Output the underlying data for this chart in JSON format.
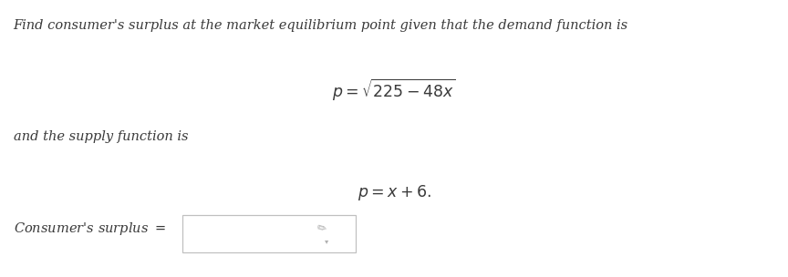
{
  "background_color": "#ffffff",
  "line1": "Find consumer's surplus at the market equilibrium point given that the demand function is",
  "demand_eq": "$p = \\sqrt{225 - 48x}$",
  "line3": "and the supply function is",
  "supply_eq": "$p = x + 6.$",
  "answer_label": "Consumer's surplus $=$",
  "fig_width": 8.64,
  "fig_height": 3.04,
  "text_color": "#3a3a3a",
  "font_size_body": 10.5,
  "font_size_eq": 12.5,
  "pencil_color": "#b0b0b0",
  "box_edge_color": "#c0c0c0"
}
